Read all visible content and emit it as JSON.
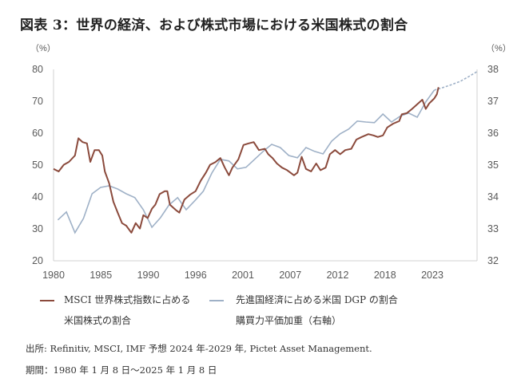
{
  "title": "図表 3：世界の経済、および株式市場における米国株式の割合",
  "footer": {
    "source": "出所: Refinitiv, MSCI, IMF 予想  2024 年-2029 年, Pictet Asset Management.",
    "period": "期間：1980 年 1 月 8 日〜2025 年 1 月 8 日"
  },
  "chart_data": {
    "type": "line",
    "title": "",
    "left_axis": {
      "unit_label": "（%）",
      "ylim": [
        20,
        80
      ],
      "ticks": [
        "80",
        "70",
        "60",
        "50",
        "40",
        "30",
        "20"
      ]
    },
    "right_axis": {
      "unit_label": "（%）",
      "ylim": [
        32,
        38
      ],
      "ticks": [
        "38",
        "37",
        "36",
        "35",
        "34",
        "33",
        "32"
      ]
    },
    "x_axis": {
      "xlim": [
        1980,
        2029.5
      ],
      "tick_labels": [
        "1980",
        "1985",
        "1990",
        "1996",
        "2001",
        "2007",
        "2012",
        "2018",
        "2023"
      ]
    },
    "grid": false,
    "legend_placement": "bottom",
    "series": [
      {
        "name": "MSCI 世界株式指数に占める 米国株式の割合",
        "legend_line1": "MSCI 世界株式指数に占める",
        "legend_line2": "米国株式の割合",
        "axis": "left",
        "color": "#8b4a3c",
        "x": [
          1980.0,
          1980.6,
          1981.2,
          1981.8,
          1982.5,
          1982.9,
          1983.4,
          1983.9,
          1984.3,
          1984.8,
          1985.3,
          1985.7,
          1986.0,
          1986.5,
          1987.0,
          1987.5,
          1988.0,
          1988.5,
          1989.1,
          1989.6,
          1990.1,
          1990.5,
          1991.0,
          1991.5,
          1991.9,
          1992.4,
          1993.0,
          1993.3,
          1993.6,
          1994.3,
          1994.7,
          1995.3,
          1996.0,
          1996.6,
          1997.2,
          1997.8,
          1998.3,
          1998.9,
          1999.5,
          2000.0,
          2000.5,
          2000.9,
          2001.6,
          2002.2,
          2002.8,
          2003.4,
          2004.0,
          2004.7,
          2005.1,
          2005.6,
          2006.1,
          2006.7,
          2007.3,
          2008.1,
          2008.5,
          2009.0,
          2009.5,
          2010.1,
          2010.7,
          2011.2,
          2011.8,
          2012.3,
          2012.9,
          2013.5,
          2014.1,
          2014.8,
          2015.4,
          2016.0,
          2016.8,
          2017.4,
          2017.9,
          2018.5,
          2019.0,
          2019.7,
          2020.4,
          2020.7,
          2021.3,
          2021.9,
          2022.4,
          2023.1,
          2023.5,
          2023.9,
          2024.5,
          2024.8,
          2025.0
        ],
        "values": [
          48.8,
          48.0,
          50.1,
          51.0,
          53.0,
          58.4,
          57.2,
          56.8,
          51.0,
          54.7,
          54.7,
          53.0,
          48.0,
          44.3,
          38.5,
          35.1,
          31.8,
          31.0,
          28.8,
          31.8,
          30.1,
          34.3,
          33.4,
          36.3,
          37.6,
          40.9,
          41.8,
          41.8,
          37.6,
          35.9,
          35.1,
          39.2,
          40.8,
          41.8,
          45.1,
          47.6,
          50.1,
          50.9,
          52.2,
          49.3,
          46.8,
          49.2,
          51.8,
          56.3,
          56.8,
          57.2,
          54.7,
          55.1,
          53.4,
          52.2,
          50.5,
          49.2,
          48.4,
          46.8,
          47.6,
          52.6,
          48.8,
          48.0,
          50.5,
          48.4,
          49.2,
          53.4,
          54.7,
          53.4,
          54.7,
          55.1,
          58.0,
          58.8,
          59.7,
          59.3,
          58.8,
          59.3,
          61.8,
          63.0,
          63.8,
          65.9,
          66.3,
          67.6,
          68.8,
          70.5,
          67.6,
          69.3,
          70.9,
          72.2,
          74.4
        ]
      },
      {
        "name": "先進国経済に占める米国 DGP の割合 購買力平価加重（右軸）",
        "legend_line1": "先進国経済に占める米国 DGP の割合",
        "legend_line2": "購買力平価加重（右軸）",
        "axis": "right",
        "color": "#9fb1c7",
        "x": [
          1980,
          1981,
          1982,
          1983,
          1984,
          1985,
          1986,
          1987,
          1988,
          1989,
          1990,
          1991,
          1992,
          1993,
          1994,
          1995,
          1996,
          1997,
          1998,
          1999,
          2000,
          2001,
          2002,
          2003,
          2004,
          2005,
          2006,
          2007,
          2008,
          2009,
          2010,
          2011,
          2012,
          2013,
          2014,
          2015,
          2016,
          2017,
          2018,
          2019,
          2020,
          2021,
          2022,
          2023,
          2024,
          2025,
          2026,
          2027,
          2028,
          2029
        ],
        "values": [
          33.28,
          33.53,
          32.88,
          33.33,
          34.1,
          34.3,
          34.35,
          34.25,
          34.1,
          33.98,
          33.6,
          33.05,
          33.35,
          33.75,
          33.98,
          33.6,
          33.88,
          34.18,
          34.75,
          35.18,
          35.13,
          34.88,
          34.93,
          35.18,
          35.43,
          35.65,
          35.55,
          35.3,
          35.23,
          35.55,
          35.43,
          35.35,
          35.75,
          35.98,
          36.13,
          36.38,
          36.35,
          36.33,
          36.6,
          36.35,
          36.53,
          36.63,
          36.5,
          36.98,
          37.35,
          37.43,
          37.52,
          37.62,
          37.77,
          37.93
        ],
        "projection_from": 2024,
        "projection_style": "dashed"
      }
    ]
  }
}
